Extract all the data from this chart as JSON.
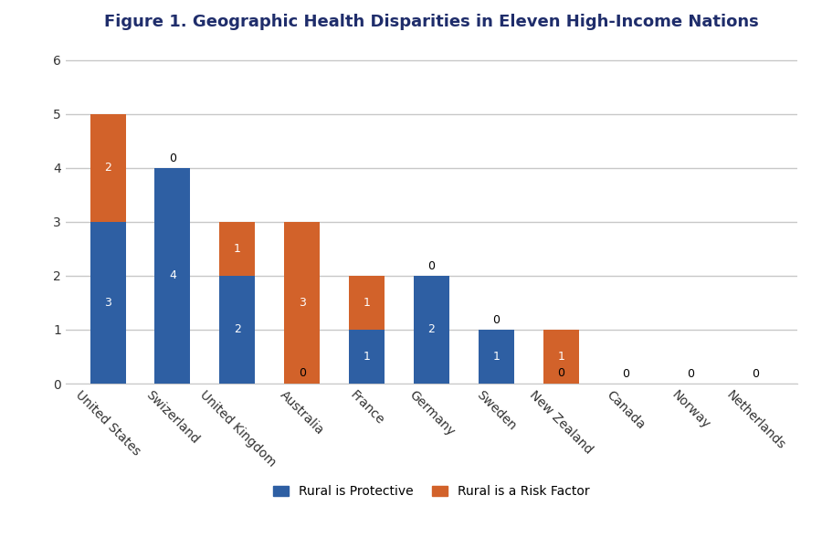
{
  "title": "Figure 1. Geographic Health Disparities in Eleven High-Income Nations",
  "categories": [
    "United States",
    "Swizerland",
    "United Kingdom",
    "Australia",
    "France",
    "Germany",
    "Sweden",
    "New Zealand",
    "Canada",
    "Norway",
    "Netherlands"
  ],
  "protective_values": [
    3,
    4,
    2,
    0,
    1,
    2,
    1,
    0,
    0,
    0,
    0
  ],
  "risk_values": [
    2,
    0,
    1,
    3,
    1,
    0,
    0,
    1,
    0,
    0,
    0
  ],
  "protective_color": "#2E5FA3",
  "risk_color": "#D2622A",
  "background_color": "#FFFFFF",
  "plot_bg_color": "#FFFFFF",
  "grid_color": "#C8C8C8",
  "title_color": "#1F2D6B",
  "ylim": [
    0,
    6.2
  ],
  "yticks": [
    0,
    1,
    2,
    3,
    4,
    5,
    6
  ],
  "legend_labels": [
    "Rural is Protective",
    "Rural is a Risk Factor"
  ],
  "bar_width": 0.55,
  "title_fontsize": 13,
  "label_fontsize": 9,
  "tick_fontsize": 10
}
